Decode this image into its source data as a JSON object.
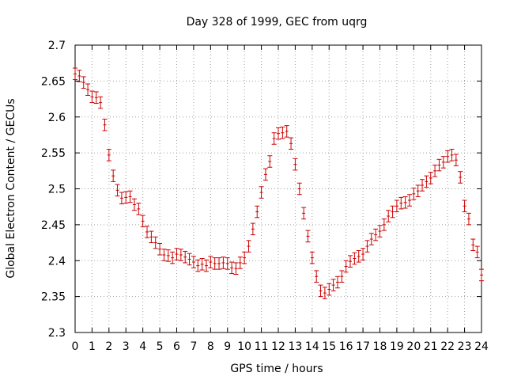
{
  "chart_data": {
    "type": "scatter",
    "title": "Day 328 of 1999, GEC from uqrg",
    "xlabel": "GPS time / hours",
    "ylabel": "Global Electron Content / GECUs",
    "xlim": [
      0,
      24
    ],
    "ylim": [
      2.3,
      2.7
    ],
    "x_ticks": [
      0,
      1,
      2,
      3,
      4,
      5,
      6,
      7,
      8,
      9,
      10,
      11,
      12,
      13,
      14,
      15,
      16,
      17,
      18,
      19,
      20,
      21,
      22,
      23,
      24
    ],
    "y_ticks": [
      2.3,
      2.35,
      2.4,
      2.45,
      2.5,
      2.55,
      2.6,
      2.65,
      2.7
    ],
    "y_tick_labels": [
      "2.3",
      "2.35",
      "2.4",
      "2.45",
      "2.5",
      "2.55",
      "2.6",
      "2.65",
      "2.7"
    ],
    "grid": true,
    "error_bar_halfwidth": 0.008,
    "series": [
      {
        "color": "#cc0000",
        "x": [
          0.0,
          0.25,
          0.5,
          0.75,
          1.0,
          1.25,
          1.5,
          1.75,
          2.0,
          2.25,
          2.5,
          2.75,
          3.0,
          3.25,
          3.5,
          3.75,
          4.0,
          4.25,
          4.5,
          4.75,
          5.0,
          5.25,
          5.5,
          5.75,
          6.0,
          6.25,
          6.5,
          6.75,
          7.0,
          7.25,
          7.5,
          7.75,
          8.0,
          8.25,
          8.5,
          8.75,
          9.0,
          9.25,
          9.5,
          9.75,
          10.0,
          10.25,
          10.5,
          10.75,
          11.0,
          11.25,
          11.5,
          11.75,
          12.0,
          12.25,
          12.5,
          12.75,
          13.0,
          13.25,
          13.5,
          13.75,
          14.0,
          14.25,
          14.5,
          14.75,
          15.0,
          15.25,
          15.5,
          15.75,
          16.0,
          16.25,
          16.5,
          16.75,
          17.0,
          17.25,
          17.5,
          17.75,
          18.0,
          18.25,
          18.5,
          18.75,
          19.0,
          19.25,
          19.5,
          19.75,
          20.0,
          20.25,
          20.5,
          20.75,
          21.0,
          21.25,
          21.5,
          21.75,
          22.0,
          22.25,
          22.5,
          22.75,
          23.0,
          23.25,
          23.5,
          23.75,
          24.0
        ],
        "y": [
          2.66,
          2.657,
          2.648,
          2.638,
          2.628,
          2.627,
          2.62,
          2.589,
          2.547,
          2.518,
          2.498,
          2.487,
          2.488,
          2.489,
          2.478,
          2.472,
          2.455,
          2.44,
          2.433,
          2.425,
          2.416,
          2.408,
          2.407,
          2.404,
          2.409,
          2.408,
          2.405,
          2.402,
          2.398,
          2.393,
          2.395,
          2.393,
          2.398,
          2.396,
          2.396,
          2.397,
          2.396,
          2.39,
          2.389,
          2.397,
          2.404,
          2.42,
          2.444,
          2.468,
          2.495,
          2.52,
          2.538,
          2.57,
          2.577,
          2.578,
          2.58,
          2.563,
          2.534,
          2.5,
          2.466,
          2.434,
          2.404,
          2.378,
          2.358,
          2.355,
          2.36,
          2.366,
          2.37,
          2.378,
          2.392,
          2.399,
          2.403,
          2.406,
          2.409,
          2.42,
          2.43,
          2.436,
          2.441,
          2.45,
          2.462,
          2.468,
          2.476,
          2.48,
          2.481,
          2.484,
          2.493,
          2.497,
          2.505,
          2.51,
          2.515,
          2.525,
          2.533,
          2.537,
          2.545,
          2.547,
          2.54,
          2.516,
          2.476,
          2.458,
          2.422,
          2.412,
          2.38
        ]
      }
    ]
  }
}
